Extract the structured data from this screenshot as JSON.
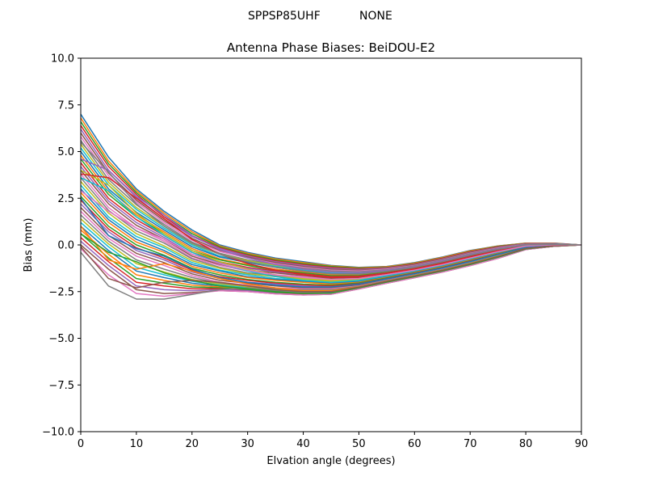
{
  "figure": {
    "suptitle_left": "SPPSP85UHF",
    "suptitle_right": "NONE"
  },
  "chart_data": {
    "type": "line",
    "title": "Antenna Phase Biases: BeiDOU-E2",
    "xlabel": "Elvation angle (degrees)",
    "ylabel": "Bias (mm)",
    "xlim": [
      0,
      90
    ],
    "ylim": [
      -10,
      10
    ],
    "xticks": [
      0,
      10,
      20,
      30,
      40,
      50,
      60,
      70,
      80,
      90
    ],
    "xtick_labels": [
      "0",
      "10",
      "20",
      "30",
      "40",
      "50",
      "60",
      "70",
      "80",
      "90"
    ],
    "yticks": [
      -10,
      -7.5,
      -5,
      -2.5,
      0,
      2.5,
      5,
      7.5,
      10
    ],
    "ytick_labels": [
      "−10.0",
      "−7.5",
      "−5.0",
      "−2.5",
      "0.0",
      "2.5",
      "5.0",
      "7.5",
      "10.0"
    ],
    "grid": false,
    "legend": "none",
    "colors": [
      "#1f77b4",
      "#ff7f0e",
      "#2ca02c",
      "#d62728",
      "#9467bd",
      "#8c564b",
      "#e377c2",
      "#7f7f7f",
      "#bcbd22",
      "#17becf"
    ],
    "x": [
      0,
      5,
      10,
      15,
      20,
      25,
      30,
      35,
      40,
      45,
      50,
      55,
      60,
      65,
      70,
      75,
      80,
      85,
      90
    ],
    "series": [
      {
        "values": [
          7.0,
          4.7,
          3.0,
          1.8,
          0.8,
          0.0,
          -0.4,
          -0.7,
          -0.9,
          -1.1,
          -1.2,
          -1.15,
          -0.95,
          -0.65,
          -0.3,
          -0.05,
          0.1,
          0.1,
          0.0
        ]
      },
      {
        "values": [
          6.8,
          4.5,
          2.9,
          1.7,
          0.7,
          -0.05,
          -0.45,
          -0.75,
          -0.95,
          -1.12,
          -1.22,
          -1.17,
          -0.97,
          -0.67,
          -0.32,
          -0.06,
          0.09,
          0.09,
          0.0
        ]
      },
      {
        "values": [
          6.6,
          4.35,
          2.8,
          1.6,
          0.6,
          -0.1,
          -0.5,
          -0.8,
          -1.0,
          -1.15,
          -1.25,
          -1.2,
          -1.0,
          -0.7,
          -0.35,
          -0.08,
          0.08,
          0.08,
          0.0
        ]
      },
      {
        "values": [
          6.4,
          4.2,
          2.7,
          1.5,
          0.5,
          -0.15,
          -0.55,
          -0.85,
          -1.05,
          -1.2,
          -1.28,
          -1.22,
          -1.02,
          -0.72,
          -0.37,
          -0.1,
          0.07,
          0.08,
          0.0
        ]
      },
      {
        "values": [
          6.2,
          4.0,
          2.55,
          1.4,
          0.45,
          -0.2,
          -0.6,
          -0.9,
          -1.1,
          -1.25,
          -1.32,
          -1.25,
          -1.05,
          -0.75,
          -0.4,
          -0.12,
          0.06,
          0.07,
          0.0
        ]
      },
      {
        "values": [
          6.0,
          3.85,
          2.4,
          1.3,
          0.35,
          -0.3,
          -0.65,
          -0.95,
          -1.15,
          -1.3,
          -1.36,
          -1.28,
          -1.07,
          -0.77,
          -0.42,
          -0.14,
          0.05,
          0.07,
          0.0
        ]
      },
      {
        "values": [
          5.8,
          3.7,
          2.3,
          1.2,
          0.25,
          -0.35,
          -0.7,
          -1.0,
          -1.2,
          -1.35,
          -1.4,
          -1.3,
          -1.1,
          -0.8,
          -0.45,
          -0.16,
          0.04,
          0.06,
          0.0
        ]
      },
      {
        "values": [
          5.6,
          3.5,
          2.15,
          1.1,
          0.15,
          -0.45,
          -0.8,
          -1.05,
          -1.25,
          -1.4,
          -1.44,
          -1.33,
          -1.12,
          -0.82,
          -0.47,
          -0.18,
          0.03,
          0.06,
          0.0
        ]
      },
      {
        "values": [
          5.4,
          3.35,
          2.0,
          1.0,
          0.05,
          -0.5,
          -0.85,
          -1.1,
          -1.3,
          -1.45,
          -1.48,
          -1.36,
          -1.15,
          -0.85,
          -0.5,
          -0.2,
          0.02,
          0.05,
          0.0
        ]
      },
      {
        "values": [
          5.2,
          3.2,
          1.9,
          0.9,
          0.0,
          -0.6,
          -0.9,
          -1.15,
          -1.35,
          -1.5,
          -1.52,
          -1.38,
          -1.17,
          -0.87,
          -0.52,
          -0.22,
          0.01,
          0.05,
          0.0
        ]
      },
      {
        "values": [
          5.0,
          3.0,
          1.75,
          0.8,
          -0.1,
          -0.65,
          -0.95,
          -1.2,
          -1.4,
          -1.55,
          -1.56,
          -1.41,
          -1.2,
          -0.9,
          -0.55,
          -0.24,
          0.0,
          0.04,
          0.0
        ]
      },
      {
        "values": [
          4.8,
          2.85,
          1.6,
          0.7,
          -0.2,
          -0.75,
          -1.05,
          -1.3,
          -1.45,
          -1.6,
          -1.6,
          -1.44,
          -1.22,
          -0.92,
          -0.57,
          -0.26,
          -0.01,
          0.04,
          0.0
        ]
      },
      {
        "values": [
          4.6,
          2.7,
          1.5,
          0.6,
          -0.3,
          -0.8,
          -1.1,
          -1.35,
          -1.5,
          -1.65,
          -1.64,
          -1.47,
          -1.25,
          -0.95,
          -0.6,
          -0.28,
          -0.02,
          0.03,
          0.0
        ]
      },
      {
        "values": [
          4.4,
          2.5,
          1.35,
          0.5,
          -0.4,
          -0.9,
          -1.2,
          -1.4,
          -1.55,
          -1.7,
          -1.68,
          -1.5,
          -1.27,
          -0.97,
          -0.62,
          -0.3,
          -0.03,
          0.03,
          0.0
        ]
      },
      {
        "values": [
          4.2,
          2.35,
          1.2,
          0.4,
          -0.5,
          -0.95,
          -1.25,
          -1.45,
          -1.6,
          -1.75,
          -1.72,
          -1.53,
          -1.3,
          -1.0,
          -0.65,
          -0.32,
          -0.04,
          0.02,
          0.0
        ]
      },
      {
        "values": [
          4.0,
          2.2,
          1.05,
          0.3,
          -0.6,
          -1.05,
          -1.35,
          -1.5,
          -1.65,
          -1.8,
          -1.76,
          -1.56,
          -1.32,
          -1.02,
          -0.67,
          -0.34,
          -0.05,
          0.02,
          0.0
        ]
      },
      {
        "values": [
          3.8,
          2.0,
          0.9,
          0.2,
          -0.7,
          -1.1,
          -1.4,
          -1.6,
          -1.7,
          -1.85,
          -1.8,
          -1.59,
          -1.35,
          -1.05,
          -0.7,
          -0.36,
          -0.06,
          0.01,
          0.0
        ]
      },
      {
        "values": [
          3.6,
          1.85,
          0.75,
          0.1,
          -0.75,
          -1.2,
          -1.5,
          -1.65,
          -1.8,
          -1.9,
          -1.84,
          -1.62,
          -1.37,
          -1.07,
          -0.72,
          -0.38,
          -0.07,
          0.01,
          0.0
        ]
      },
      {
        "values": [
          3.4,
          1.7,
          0.6,
          -0.05,
          -0.85,
          -1.25,
          -1.55,
          -1.7,
          -1.85,
          -1.95,
          -1.88,
          -1.65,
          -1.4,
          -1.1,
          -0.75,
          -0.4,
          -0.08,
          0.0,
          0.0
        ]
      },
      {
        "values": [
          3.2,
          1.5,
          0.45,
          -0.15,
          -0.95,
          -1.35,
          -1.6,
          -1.8,
          -1.9,
          -2.0,
          -1.92,
          -1.68,
          -1.42,
          -1.12,
          -0.77,
          -0.42,
          -0.09,
          0.0,
          0.0
        ]
      },
      {
        "values": [
          3.0,
          1.35,
          0.3,
          -0.3,
          -1.05,
          -1.4,
          -1.7,
          -1.85,
          -1.95,
          -2.05,
          -1.96,
          -1.71,
          -1.45,
          -1.15,
          -0.8,
          -0.44,
          -0.1,
          -0.01,
          0.0
        ]
      },
      {
        "values": [
          2.8,
          1.2,
          0.15,
          -0.4,
          -1.15,
          -1.5,
          -1.75,
          -1.9,
          -2.0,
          -2.1,
          -2.0,
          -1.74,
          -1.47,
          -1.17,
          -0.82,
          -0.46,
          -0.11,
          -0.01,
          0.0
        ]
      },
      {
        "values": [
          2.6,
          1.0,
          0.0,
          -0.55,
          -1.25,
          -1.6,
          -1.85,
          -2.0,
          -2.1,
          -2.15,
          -2.04,
          -1.77,
          -1.5,
          -1.2,
          -0.85,
          -0.48,
          -0.12,
          -0.02,
          0.0
        ]
      },
      {
        "values": [
          2.4,
          0.85,
          -0.15,
          -0.7,
          -1.35,
          -1.7,
          -1.9,
          -2.05,
          -2.15,
          -2.2,
          -2.08,
          -1.8,
          -1.52,
          -1.22,
          -0.87,
          -0.5,
          -0.13,
          -0.02,
          0.0
        ]
      },
      {
        "values": [
          2.2,
          0.7,
          -0.3,
          -0.8,
          -1.45,
          -1.8,
          -2.0,
          -2.1,
          -2.2,
          -2.25,
          -2.12,
          -1.83,
          -1.55,
          -1.25,
          -0.9,
          -0.52,
          -0.14,
          -0.03,
          0.0
        ]
      },
      {
        "values": [
          2.0,
          0.5,
          -0.45,
          -0.95,
          -1.55,
          -1.9,
          -2.05,
          -2.2,
          -2.3,
          -2.3,
          -2.16,
          -1.86,
          -1.57,
          -1.27,
          -0.92,
          -0.54,
          -0.15,
          -0.03,
          0.0
        ]
      },
      {
        "values": [
          1.8,
          0.35,
          -0.6,
          -1.1,
          -1.65,
          -2.0,
          -2.15,
          -2.3,
          -2.35,
          -2.35,
          -2.2,
          -1.89,
          -1.6,
          -1.3,
          -0.95,
          -0.56,
          -0.16,
          -0.04,
          0.0
        ]
      },
      {
        "values": [
          1.6,
          0.2,
          -0.8,
          -1.3,
          -1.75,
          -2.05,
          -2.2,
          -2.35,
          -2.4,
          -2.4,
          -2.22,
          -1.91,
          -1.62,
          -1.32,
          -0.97,
          -0.58,
          -0.17,
          -0.04,
          0.0
        ]
      },
      {
        "values": [
          1.4,
          0.05,
          -1.0,
          -1.45,
          -1.85,
          -2.1,
          -2.25,
          -2.4,
          -2.45,
          -2.45,
          -2.24,
          -1.93,
          -1.64,
          -1.34,
          -0.99,
          -0.6,
          -0.18,
          -0.05,
          0.0
        ]
      },
      {
        "values": [
          1.2,
          -0.1,
          -1.2,
          -1.6,
          -1.95,
          -2.15,
          -2.3,
          -2.45,
          -2.5,
          -2.5,
          -2.26,
          -1.95,
          -1.66,
          -1.36,
          -1.01,
          -0.62,
          -0.19,
          -0.05,
          0.0
        ]
      },
      {
        "values": [
          1.0,
          -0.3,
          -1.4,
          -1.75,
          -2.05,
          -2.2,
          -2.35,
          -2.5,
          -2.55,
          -2.55,
          -2.28,
          -1.97,
          -1.68,
          -1.38,
          -1.03,
          -0.64,
          -0.2,
          -0.06,
          0.0
        ]
      },
      {
        "values": [
          0.8,
          -0.5,
          -1.6,
          -1.9,
          -2.15,
          -2.25,
          -2.4,
          -2.55,
          -2.6,
          -2.58,
          -2.3,
          -1.99,
          -1.7,
          -1.4,
          -1.05,
          -0.66,
          -0.21,
          -0.06,
          0.0
        ]
      },
      {
        "values": [
          0.6,
          -0.7,
          -1.8,
          -2.05,
          -2.25,
          -2.3,
          -2.4,
          -2.55,
          -2.62,
          -2.6,
          -2.32,
          -2.01,
          -1.72,
          -1.42,
          -1.07,
          -0.68,
          -0.22,
          -0.07,
          0.0
        ]
      },
      {
        "values": [
          0.4,
          -0.9,
          -2.0,
          -2.2,
          -2.35,
          -2.35,
          -2.45,
          -2.6,
          -2.65,
          -2.62,
          -2.34,
          -2.03,
          -1.74,
          -1.44,
          -1.09,
          -0.7,
          -0.23,
          -0.07,
          0.0
        ]
      },
      {
        "values": [
          0.2,
          -1.1,
          -2.2,
          -2.4,
          -2.45,
          -2.4,
          -2.45,
          -2.6,
          -2.67,
          -2.63,
          -2.35,
          -2.04,
          -1.75,
          -1.45,
          -1.1,
          -0.71,
          -0.24,
          -0.08,
          0.0
        ]
      },
      {
        "values": [
          0.0,
          -1.3,
          -2.4,
          -2.6,
          -2.55,
          -2.45,
          -2.5,
          -2.62,
          -2.68,
          -2.64,
          -2.36,
          -2.05,
          -1.76,
          -1.46,
          -1.11,
          -0.72,
          -0.25,
          -0.08,
          0.0
        ]
      },
      {
        "values": [
          -0.2,
          -1.6,
          -2.6,
          -2.75,
          -2.6,
          -2.45,
          -2.5,
          -2.62,
          -2.68,
          -2.64,
          -2.36,
          -2.05,
          -1.76,
          -1.46,
          -1.11,
          -0.72,
          -0.25,
          -0.08,
          0.0
        ]
      },
      {
        "values": [
          -0.4,
          -2.2,
          -2.9,
          -2.9,
          -2.65,
          -2.4,
          -2.3,
          -2.45,
          -2.55,
          -2.5,
          -2.25,
          -1.95,
          -1.68,
          -1.38,
          -1.04,
          -0.66,
          -0.22,
          -0.06,
          0.0
        ]
      },
      {
        "values": [
          4.0,
          3.2,
          1.7,
          0.6,
          -0.3,
          -0.9,
          -1.3,
          -1.6,
          -1.8,
          -1.9,
          -1.85,
          -1.6,
          -1.35,
          -1.05,
          -0.7,
          -0.36,
          -0.06,
          0.01,
          0.0
        ]
      },
      {
        "values": [
          3.6,
          2.9,
          1.5,
          0.5,
          -0.4,
          -1.0,
          -1.4,
          -1.7,
          -1.9,
          -2.0,
          -1.9,
          -1.65,
          -1.38,
          -1.08,
          -0.72,
          -0.38,
          -0.07,
          0.01,
          0.0
        ]
      },
      {
        "values": [
          2.5,
          0.5,
          -0.2,
          -0.6,
          -1.3,
          -1.75,
          -2.0,
          -2.15,
          -2.25,
          -2.25,
          -2.1,
          -1.82,
          -1.54,
          -1.24,
          -0.89,
          -0.51,
          -0.14,
          -0.03,
          0.0
        ]
      },
      {
        "values": [
          1.0,
          -0.8,
          -1.3,
          -1.0,
          -1.4,
          -1.8,
          -2.1,
          -2.3,
          -2.45,
          -2.45,
          -2.25,
          -1.95,
          -1.66,
          -1.36,
          -1.01,
          -0.62,
          -0.19,
          -0.05,
          0.0
        ]
      },
      {
        "values": [
          0.6,
          -0.4,
          -0.9,
          -1.5,
          -1.9,
          -2.2,
          -2.35,
          -2.5,
          -2.6,
          -2.58,
          -2.3,
          -1.99,
          -1.7,
          -1.4,
          -1.05,
          -0.66,
          -0.21,
          -0.06,
          0.0
        ]
      },
      {
        "values": [
          3.8,
          3.6,
          2.5,
          1.4,
          0.3,
          -0.5,
          -1.0,
          -1.35,
          -1.6,
          -1.75,
          -1.72,
          -1.53,
          -1.3,
          -1.0,
          -0.65,
          -0.32,
          -0.04,
          0.02,
          0.0
        ]
      },
      {
        "values": [
          4.6,
          4.0,
          2.6,
          1.6,
          0.5,
          -0.25,
          -0.7,
          -1.05,
          -1.3,
          -1.45,
          -1.48,
          -1.36,
          -1.15,
          -0.85,
          -0.5,
          -0.2,
          0.02,
          0.05,
          0.0
        ]
      },
      {
        "values": [
          -0.1,
          -1.8,
          -2.3,
          -2.0,
          -1.9,
          -2.0,
          -2.2,
          -2.4,
          -2.5,
          -2.5,
          -2.26,
          -1.95,
          -1.66,
          -1.36,
          -1.01,
          -0.62,
          -0.19,
          -0.05,
          0.0
        ]
      },
      {
        "values": [
          2.9,
          1.8,
          0.9,
          0.3,
          -0.5,
          -1.0,
          -1.35,
          -1.6,
          -1.75,
          -1.85,
          -1.8,
          -1.59,
          -1.35,
          -1.05,
          -0.7,
          -0.36,
          -0.06,
          0.01,
          0.0
        ]
      },
      {
        "values": [
          5.5,
          3.9,
          2.2,
          1.0,
          0.1,
          -0.5,
          -0.9,
          -1.2,
          -1.4,
          -1.55,
          -1.56,
          -1.41,
          -1.2,
          -0.9,
          -0.55,
          -0.24,
          0.0,
          0.04,
          0.0
        ]
      }
    ]
  }
}
